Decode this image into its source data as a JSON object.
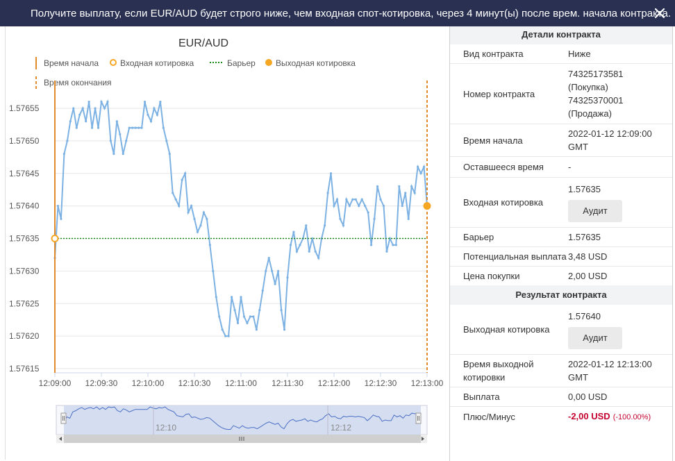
{
  "header": {
    "title": "Получите выплату, если EUR/AUD будет строго ниже, чем входная спот-котировка, через 4 минут(ы) после врем. начала контракта.",
    "close_icon": "close-icon"
  },
  "chart": {
    "title": "EUR/AUD",
    "legend": {
      "start_time": "Время начала",
      "entry_spot": "Входная котировка",
      "barrier": "Барьер",
      "exit_spot": "Выходная котировка",
      "end_time": "Время окончания"
    },
    "colors": {
      "line": "#7cb1e3",
      "marker": "#f5a623",
      "barrier": "#1a8a1a",
      "time_line": "#e08a2a"
    },
    "navigator_labels": [
      "12:10",
      "12:12"
    ]
  },
  "chart_data": {
    "type": "line",
    "title": "EUR/AUD",
    "ylim": [
      1.57615,
      1.57655
    ],
    "yticks": [
      "1.57655",
      "1.57650",
      "1.57645",
      "1.57640",
      "1.57635",
      "1.57630",
      "1.57625",
      "1.57620",
      "1.57615"
    ],
    "xticks": [
      "12:09:00",
      "12:09:30",
      "12:10:00",
      "12:10:30",
      "12:11:00",
      "12:11:30",
      "12:12:00",
      "12:12:30",
      "12:13:00"
    ],
    "xlim_seconds": [
      0,
      240
    ],
    "entry_spot": 1.57635,
    "barrier": 1.57635,
    "exit_spot": 1.5764,
    "series": [
      {
        "name": "EUR/AUD",
        "x": [
          0,
          2,
          4,
          6,
          8,
          10,
          12,
          14,
          16,
          18,
          20,
          22,
          24,
          26,
          28,
          30,
          32,
          34,
          36,
          38,
          40,
          42,
          44,
          46,
          48,
          50,
          52,
          54,
          56,
          58,
          60,
          62,
          64,
          66,
          68,
          70,
          72,
          74,
          76,
          78,
          80,
          82,
          84,
          86,
          88,
          90,
          92,
          94,
          96,
          98,
          100,
          102,
          104,
          106,
          108,
          110,
          112,
          114,
          116,
          118,
          120,
          122,
          124,
          126,
          128,
          130,
          132,
          134,
          136,
          138,
          140,
          142,
          144,
          146,
          148,
          150,
          152,
          154,
          156,
          158,
          160,
          162,
          164,
          166,
          168,
          170,
          172,
          174,
          176,
          178,
          180,
          182,
          184,
          186,
          188,
          190,
          192,
          194,
          196,
          198,
          200,
          202,
          204,
          206,
          208,
          210,
          212,
          214,
          216,
          218,
          220,
          222,
          224,
          226,
          228,
          230,
          232,
          234,
          236,
          238,
          240
        ],
        "values": [
          1.57632,
          1.5764,
          1.57638,
          1.57648,
          1.5765,
          1.57653,
          1.57655,
          1.57652,
          1.57654,
          1.57655,
          1.57653,
          1.57656,
          1.57652,
          1.57655,
          1.57652,
          1.57656,
          1.57655,
          1.57656,
          1.5765,
          1.57648,
          1.57653,
          1.57651,
          1.57648,
          1.5765,
          1.57652,
          1.57652,
          1.57652,
          1.57652,
          1.57652,
          1.57656,
          1.57654,
          1.57653,
          1.57655,
          1.57654,
          1.57656,
          1.57652,
          1.5765,
          1.57648,
          1.57642,
          1.57641,
          1.5764,
          1.57644,
          1.57645,
          1.57639,
          1.5764,
          1.57638,
          1.57636,
          1.57637,
          1.57639,
          1.57638,
          1.57634,
          1.5763,
          1.57626,
          1.57623,
          1.57621,
          1.5762,
          1.5762,
          1.57626,
          1.57624,
          1.57622,
          1.57626,
          1.57623,
          1.57622,
          1.57623,
          1.57623,
          1.57621,
          1.57624,
          1.57627,
          1.5763,
          1.57632,
          1.5763,
          1.57628,
          1.5763,
          1.57624,
          1.57621,
          1.57629,
          1.57634,
          1.57636,
          1.57633,
          1.57634,
          1.57635,
          1.57637,
          1.57633,
          1.57635,
          1.57633,
          1.57632,
          1.57635,
          1.57637,
          1.57642,
          1.57645,
          1.5764,
          1.57641,
          1.57638,
          1.57637,
          1.57641,
          1.5764,
          1.57641,
          1.57641,
          1.5764,
          1.57641,
          1.5764,
          1.57639,
          1.57634,
          1.57638,
          1.57643,
          1.57641,
          1.5764,
          1.57633,
          1.57635,
          1.57634,
          1.57634,
          1.57643,
          1.5764,
          1.57642,
          1.57638,
          1.57643,
          1.57642,
          1.57646,
          1.57645,
          1.57646,
          1.5764
        ]
      }
    ]
  },
  "details": {
    "title": "Детали контракта",
    "rows": [
      {
        "label": "Вид контракта",
        "value": "Ниже"
      },
      {
        "label": "Номер контракта",
        "value_lines": [
          "74325173581",
          "(Покупка)",
          "74325370001",
          "(Продажа)"
        ]
      },
      {
        "label": "Время начала",
        "value_lines": [
          "2022-01-12 12:09:00",
          "GMT"
        ]
      },
      {
        "label": "Оставшееся время",
        "value": "-"
      },
      {
        "label": "Входная котировка",
        "value": "1.57635",
        "button": "Аудит"
      },
      {
        "label": "Барьер",
        "value": "1.57635"
      },
      {
        "label": "Потенциальная выплата",
        "value": "3,48 USD"
      },
      {
        "label": "Цена покупки",
        "value": "2,00 USD"
      }
    ]
  },
  "result": {
    "title": "Результат контракта",
    "rows": [
      {
        "label": "Выходная котировка",
        "value": "1.57640",
        "button": "Аудит"
      },
      {
        "label_lines": [
          "Время выходной",
          "котировки"
        ],
        "value_lines": [
          "2022-01-12 12:13:00",
          "GMT"
        ]
      },
      {
        "label": "Выплата",
        "value": "0,00 USD"
      },
      {
        "label": "Плюс/Минус",
        "value": "-2,00 USD",
        "percent": "(-100.00%)"
      }
    ]
  }
}
